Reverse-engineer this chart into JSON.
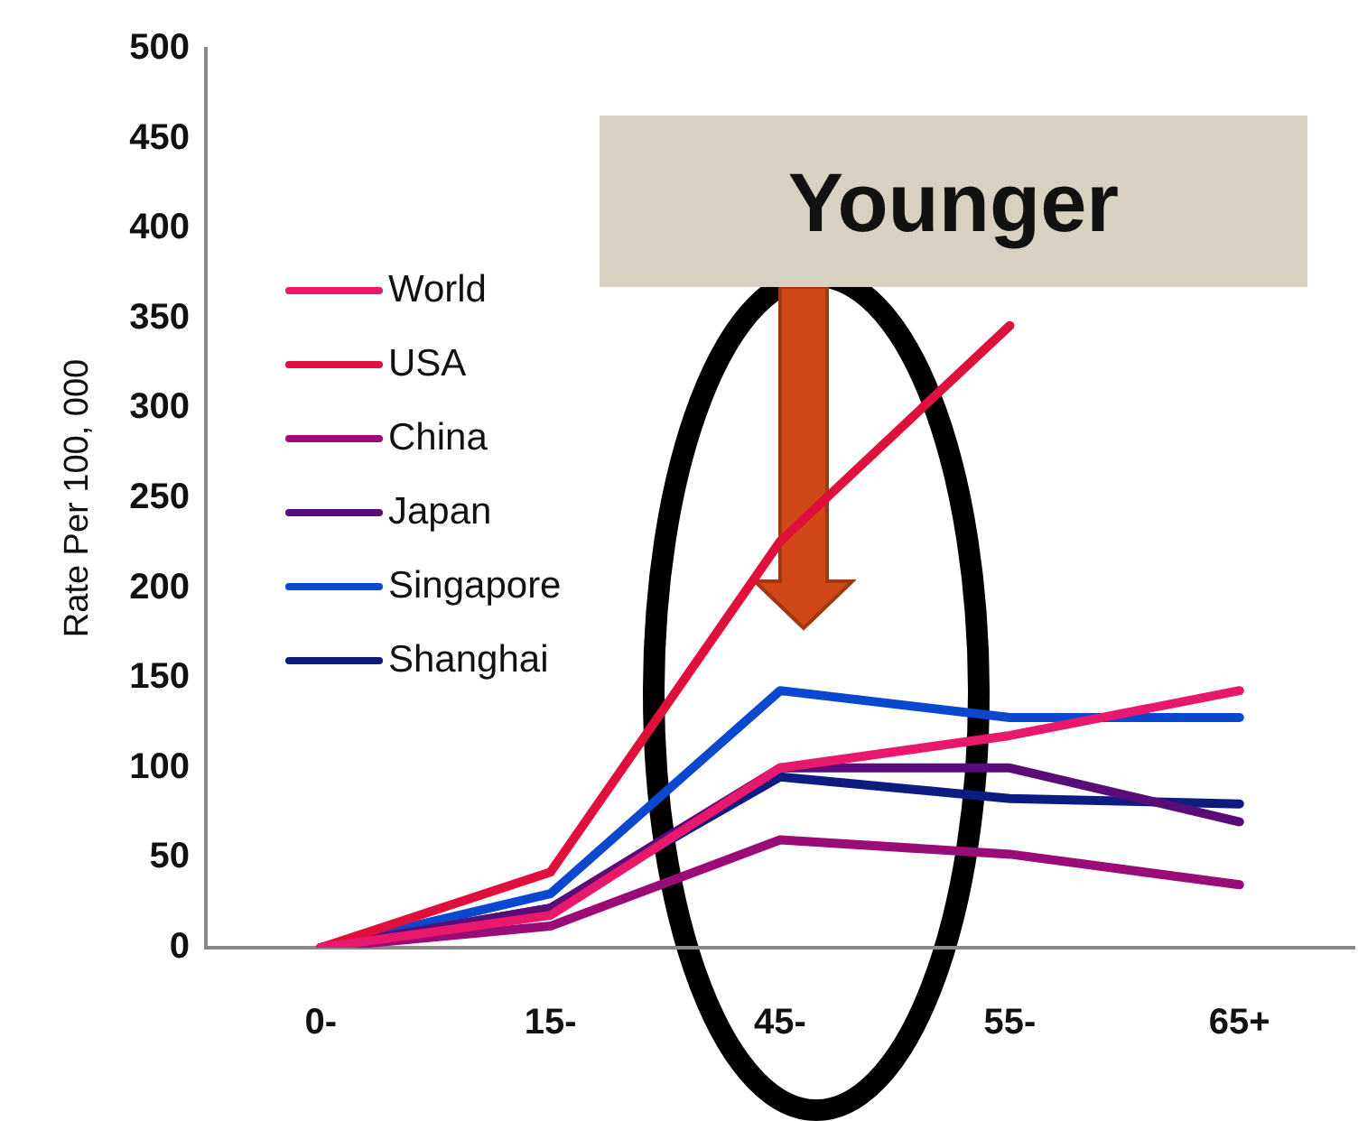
{
  "chart_data": {
    "type": "line",
    "ylabel": "Rate Per 100, 000",
    "categories": [
      "0-",
      "15-",
      "45-",
      "55-",
      "65+"
    ],
    "series": [
      {
        "name": "World",
        "color": "#e8186c",
        "values": [
          0,
          18,
          100,
          118,
          143
        ]
      },
      {
        "name": "USA",
        "color": "#e0103c",
        "values": [
          0,
          42,
          226,
          346,
          null
        ]
      },
      {
        "name": "China",
        "color": "#9a0c78",
        "values": [
          0,
          12,
          60,
          52,
          35
        ]
      },
      {
        "name": "Japan",
        "color": "#5a0c78",
        "values": [
          0,
          22,
          100,
          100,
          70
        ]
      },
      {
        "name": "Singapore",
        "color": "#0a48d0",
        "values": [
          0,
          30,
          143,
          128,
          128
        ]
      },
      {
        "name": "Shanghai",
        "color": "#0c1c80",
        "values": [
          0,
          22,
          95,
          83,
          80
        ]
      }
    ],
    "ylim": [
      0,
      500
    ],
    "yticks": [
      0,
      50,
      100,
      150,
      200,
      250,
      300,
      350,
      400,
      450,
      500
    ],
    "grid": false,
    "legend": "top left",
    "marker": "none",
    "line_style": "solid",
    "annotations": [
      "Younger"
    ]
  }
}
